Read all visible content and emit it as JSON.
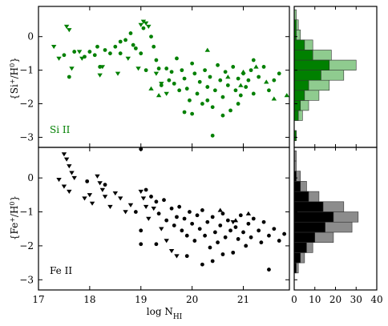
{
  "colors": {
    "si": "#008000",
    "fe": "#000000",
    "si_hist_light": "#8fcb8f",
    "fe_hist_light": "#8c8c8c"
  },
  "chart_data": {
    "type": "scatter",
    "xlabel": "log N_HI",
    "xlabel_main": "log N",
    "xlabel_sub": "HI",
    "xlim": [
      17,
      21.9
    ],
    "xticks": [
      "17",
      "18",
      "19",
      "20",
      "21"
    ],
    "hist_xticks": [
      "0",
      "10",
      "20",
      "30",
      "40"
    ],
    "hist_xlim": [
      0,
      40
    ],
    "panels": [
      {
        "name": "Si II",
        "label": "Si II",
        "ylabel": "{Si+/H0}",
        "ylabel_main": "{Si",
        "ylabel_sup": "+",
        "ylabel_mid": "/H",
        "ylabel_sup2": "0",
        "ylabel_end": "}",
        "ylim": [
          -3.3,
          0.9
        ],
        "yticks": [
          "−3",
          "−2",
          "−1",
          "0"
        ],
        "ytick_values": [
          -3,
          -2,
          -1,
          0
        ],
        "detections": [
          [
            17.5,
            -0.55
          ],
          [
            17.7,
            -0.45
          ],
          [
            17.9,
            -0.6
          ],
          [
            18.0,
            -0.45
          ],
          [
            18.1,
            -0.55
          ],
          [
            18.15,
            -0.3
          ],
          [
            18.3,
            -0.4
          ],
          [
            18.4,
            -0.5
          ],
          [
            18.5,
            -0.3
          ],
          [
            18.6,
            -0.15
          ],
          [
            18.7,
            -0.1
          ],
          [
            18.8,
            0.1
          ],
          [
            18.85,
            -0.25
          ],
          [
            18.9,
            -0.35
          ],
          [
            19.0,
            -0.5
          ],
          [
            19.05,
            0.25
          ],
          [
            19.2,
            0.0
          ],
          [
            19.25,
            -0.3
          ],
          [
            19.3,
            -0.7
          ],
          [
            19.35,
            -0.95
          ],
          [
            19.5,
            -0.95
          ],
          [
            19.55,
            -1.3
          ],
          [
            19.6,
            -1.05
          ],
          [
            19.65,
            -1.4
          ],
          [
            19.7,
            -0.65
          ],
          [
            19.75,
            -1.6
          ],
          [
            19.8,
            -1.0
          ],
          [
            19.85,
            -1.25
          ],
          [
            19.9,
            -1.55
          ],
          [
            19.95,
            -1.9
          ],
          [
            20.0,
            -0.8
          ],
          [
            20.05,
            -1.1
          ],
          [
            20.1,
            -1.7
          ],
          [
            20.15,
            -1.35
          ],
          [
            20.2,
            -2.0
          ],
          [
            20.25,
            -1.0
          ],
          [
            20.3,
            -1.5
          ],
          [
            20.35,
            -1.2
          ],
          [
            20.4,
            -2.1
          ],
          [
            20.45,
            -1.6
          ],
          [
            20.5,
            -0.85
          ],
          [
            20.55,
            -1.3
          ],
          [
            20.6,
            -1.8
          ],
          [
            20.65,
            -1.05
          ],
          [
            20.7,
            -1.45
          ],
          [
            20.75,
            -2.2
          ],
          [
            20.8,
            -0.9
          ],
          [
            20.85,
            -1.6
          ],
          [
            20.9,
            -1.25
          ],
          [
            20.95,
            -1.75
          ],
          [
            21.0,
            -1.1
          ],
          [
            21.05,
            -1.5
          ],
          [
            21.1,
            -1.3
          ],
          [
            21.15,
            -1.0
          ],
          [
            21.2,
            -1.7
          ],
          [
            21.3,
            -1.2
          ],
          [
            21.4,
            -0.9
          ],
          [
            21.5,
            -1.6
          ],
          [
            21.6,
            -1.3
          ],
          [
            21.7,
            -1.1
          ],
          [
            19.85,
            -2.25
          ],
          [
            20.3,
            -1.9
          ],
          [
            20.6,
            -2.35
          ],
          [
            20.9,
            -2.0
          ],
          [
            21.2,
            -0.7
          ],
          [
            17.6,
            -1.2
          ],
          [
            18.2,
            -0.9
          ],
          [
            18.6,
            -0.5
          ],
          [
            19.1,
            -1.0
          ],
          [
            19.4,
            -1.45
          ],
          [
            20.0,
            -2.3
          ],
          [
            20.4,
            -2.95
          ]
        ],
        "upper_limits": [
          [
            17.3,
            -0.3
          ],
          [
            17.4,
            -0.65
          ],
          [
            17.55,
            0.3
          ],
          [
            17.6,
            0.2
          ],
          [
            17.65,
            -0.95
          ],
          [
            17.8,
            -0.45
          ],
          [
            17.85,
            -0.65
          ],
          [
            18.2,
            -1.15
          ],
          [
            18.25,
            -0.9
          ],
          [
            18.55,
            -1.1
          ],
          [
            18.75,
            -0.65
          ],
          [
            18.95,
            -0.95
          ],
          [
            19.0,
            0.35
          ],
          [
            19.05,
            0.45
          ],
          [
            19.1,
            0.4
          ],
          [
            19.15,
            0.3
          ],
          [
            19.3,
            -1.1
          ],
          [
            19.4,
            -1.4
          ],
          [
            19.5,
            -1.7
          ]
        ],
        "lower_limits": [
          [
            20.3,
            -0.4
          ],
          [
            20.7,
            -1.2
          ],
          [
            21.0,
            -1.05
          ],
          [
            21.25,
            -0.9
          ],
          [
            21.45,
            -1.35
          ],
          [
            21.6,
            -1.85
          ],
          [
            21.85,
            -1.75
          ],
          [
            19.2,
            -1.55
          ],
          [
            19.35,
            -1.75
          ],
          [
            20.95,
            -1.45
          ]
        ],
        "hist_bins": [
          -3.1,
          -2.8,
          -2.5,
          -2.2,
          -1.9,
          -1.6,
          -1.3,
          -1.0,
          -0.7,
          -0.4,
          -0.1,
          0.2,
          0.5,
          0.8
        ],
        "hist_detected": [
          1,
          0,
          2,
          3,
          5,
          7,
          13,
          17,
          9,
          5,
          1,
          1,
          0
        ],
        "hist_all": [
          1,
          0,
          4,
          7,
          12,
          17,
          24,
          30,
          18,
          9,
          3,
          2,
          1
        ]
      },
      {
        "name": "Fe II",
        "label": "Fe II",
        "ylabel": "{Fe+/H0}",
        "ylabel_main": "{Fe",
        "ylabel_sup": "+",
        "ylabel_mid": "/H",
        "ylabel_sup2": "0",
        "ylabel_end": "}",
        "ylim": [
          -3.3,
          0.9
        ],
        "yticks": [
          "−3",
          "−2",
          "−1",
          "0"
        ],
        "ytick_values": [
          -3,
          -2,
          -1,
          0
        ],
        "detections": [
          [
            17.95,
            -0.1
          ],
          [
            18.3,
            -0.2
          ],
          [
            19.0,
            0.85
          ],
          [
            19.1,
            -0.35
          ],
          [
            19.2,
            -0.55
          ],
          [
            19.3,
            -0.7
          ],
          [
            19.35,
            -1.05
          ],
          [
            19.45,
            -0.65
          ],
          [
            19.5,
            -1.25
          ],
          [
            19.6,
            -0.9
          ],
          [
            19.65,
            -1.4
          ],
          [
            19.7,
            -1.15
          ],
          [
            19.75,
            -0.85
          ],
          [
            19.8,
            -1.55
          ],
          [
            19.85,
            -1.2
          ],
          [
            19.9,
            -1.7
          ],
          [
            19.95,
            -1.0
          ],
          [
            20.0,
            -1.35
          ],
          [
            20.05,
            -1.85
          ],
          [
            20.1,
            -1.1
          ],
          [
            20.15,
            -1.5
          ],
          [
            20.2,
            -0.95
          ],
          [
            20.25,
            -1.7
          ],
          [
            20.3,
            -1.3
          ],
          [
            20.35,
            -2.05
          ],
          [
            20.4,
            -1.15
          ],
          [
            20.45,
            -1.6
          ],
          [
            20.5,
            -1.9
          ],
          [
            20.55,
            -1.4
          ],
          [
            20.6,
            -1.05
          ],
          [
            20.65,
            -1.75
          ],
          [
            20.7,
            -1.25
          ],
          [
            20.75,
            -1.55
          ],
          [
            20.8,
            -2.2
          ],
          [
            20.85,
            -1.45
          ],
          [
            20.9,
            -1.8
          ],
          [
            20.95,
            -1.1
          ],
          [
            21.0,
            -1.6
          ],
          [
            21.05,
            -2.0
          ],
          [
            21.1,
            -1.35
          ],
          [
            21.15,
            -1.75
          ],
          [
            21.2,
            -1.2
          ],
          [
            21.3,
            -1.55
          ],
          [
            21.35,
            -1.9
          ],
          [
            21.4,
            -1.3
          ],
          [
            21.5,
            -1.7
          ],
          [
            21.6,
            -1.5
          ],
          [
            21.7,
            -1.85
          ],
          [
            21.8,
            -1.65
          ],
          [
            19.9,
            -2.3
          ],
          [
            20.2,
            -2.55
          ],
          [
            20.4,
            -2.45
          ],
          [
            20.6,
            -2.25
          ],
          [
            21.5,
            -2.7
          ],
          [
            19.0,
            -1.55
          ],
          [
            19.0,
            -1.95
          ],
          [
            19.3,
            -1.95
          ],
          [
            18.9,
            -1.0
          ]
        ],
        "upper_limits": [
          [
            17.5,
            0.7
          ],
          [
            17.55,
            0.55
          ],
          [
            17.6,
            0.35
          ],
          [
            17.65,
            0.15
          ],
          [
            17.7,
            0.0
          ],
          [
            17.4,
            -0.05
          ],
          [
            17.5,
            -0.25
          ],
          [
            17.6,
            -0.4
          ],
          [
            17.9,
            -0.6
          ],
          [
            18.0,
            -0.5
          ],
          [
            18.05,
            -0.75
          ],
          [
            18.15,
            0.05
          ],
          [
            18.2,
            -0.15
          ],
          [
            18.25,
            -0.35
          ],
          [
            18.3,
            -0.55
          ],
          [
            18.4,
            -0.85
          ],
          [
            18.5,
            -0.45
          ],
          [
            18.6,
            -0.6
          ],
          [
            18.7,
            -1.0
          ],
          [
            18.8,
            -0.8
          ],
          [
            19.0,
            -0.4
          ],
          [
            19.05,
            -0.6
          ],
          [
            19.1,
            -0.85
          ],
          [
            19.15,
            -1.2
          ],
          [
            19.25,
            -0.9
          ],
          [
            19.4,
            -1.5
          ],
          [
            19.5,
            -1.85
          ],
          [
            19.6,
            -2.15
          ],
          [
            19.7,
            -2.3
          ],
          [
            20.8,
            -1.3
          ]
        ],
        "lower_limits": [
          [
            20.55,
            -0.95
          ],
          [
            20.85,
            -1.25
          ],
          [
            21.1,
            -1.05
          ]
        ],
        "hist_bins": [
          -3.1,
          -2.8,
          -2.5,
          -2.2,
          -1.9,
          -1.6,
          -1.3,
          -1.0,
          -0.7,
          -0.4,
          -0.1,
          0.2,
          0.5,
          0.8
        ],
        "hist_detected": [
          0,
          1,
          3,
          6,
          10,
          15,
          19,
          14,
          7,
          3,
          1,
          0,
          0
        ],
        "hist_all": [
          0,
          2,
          5,
          9,
          19,
          28,
          31,
          24,
          12,
          6,
          3,
          1,
          1
        ]
      }
    ],
    "grid": false
  }
}
